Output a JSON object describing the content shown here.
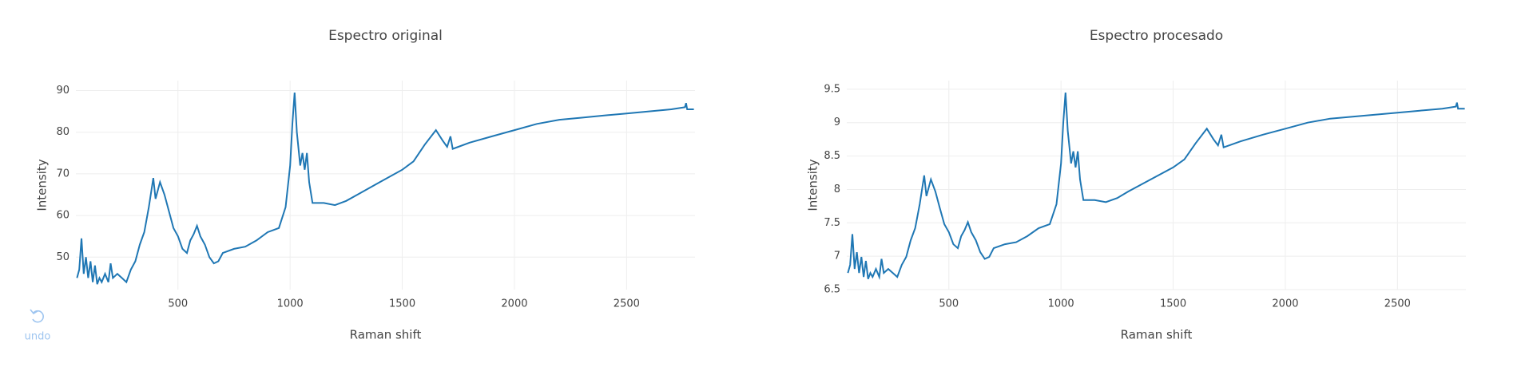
{
  "chart_data": [
    {
      "type": "line",
      "title": "Espectro original",
      "x_label": "Raman shift",
      "y_label": "Intensity",
      "x": [
        50,
        60,
        70,
        80,
        90,
        100,
        110,
        120,
        130,
        140,
        150,
        160,
        175,
        190,
        200,
        210,
        230,
        250,
        270,
        290,
        310,
        330,
        350,
        370,
        390,
        400,
        420,
        440,
        460,
        480,
        500,
        520,
        540,
        555,
        570,
        585,
        600,
        620,
        640,
        660,
        680,
        700,
        750,
        800,
        850,
        900,
        950,
        980,
        1000,
        1010,
        1020,
        1030,
        1045,
        1055,
        1065,
        1075,
        1085,
        1100,
        1150,
        1200,
        1250,
        1300,
        1400,
        1500,
        1550,
        1600,
        1650,
        1680,
        1700,
        1715,
        1725,
        1750,
        1800,
        1900,
        2000,
        2100,
        2200,
        2300,
        2400,
        2500,
        2600,
        2700,
        2760,
        2765,
        2770,
        2800
      ],
      "series": [
        {
          "color": "#1f77b4",
          "values": [
            45,
            47,
            54.5,
            46,
            50,
            45,
            49,
            44,
            48,
            43.5,
            45,
            44,
            46,
            44,
            48.5,
            45,
            46,
            45,
            44,
            47,
            49,
            53,
            56,
            62,
            69,
            64,
            68,
            65,
            61,
            57,
            55,
            52,
            51,
            54,
            55.5,
            57.5,
            55,
            53,
            50,
            48.5,
            49,
            51,
            52,
            52.5,
            54,
            56,
            57,
            62,
            72,
            82,
            89.5,
            80,
            72,
            75,
            71,
            75,
            68,
            63,
            63,
            62.5,
            63.5,
            65,
            68,
            71,
            73,
            77,
            80.5,
            78,
            76.5,
            79,
            76,
            76.5,
            77.5,
            79,
            80.5,
            82,
            83,
            83.5,
            84,
            84.5,
            85,
            85.5,
            86,
            87,
            85.5,
            85.5
          ]
        }
      ],
      "xlim": [
        45,
        2805
      ],
      "ylim": [
        42.2,
        92.4
      ],
      "xticks": [
        500,
        1000,
        1500,
        2000,
        2500
      ],
      "yticks": [
        50,
        60,
        70,
        80,
        90
      ],
      "grid": true
    },
    {
      "type": "line",
      "title": "Espectro procesado",
      "x_label": "Raman shift",
      "y_label": "Intensity",
      "x": [
        50,
        60,
        70,
        80,
        90,
        100,
        110,
        120,
        130,
        140,
        150,
        160,
        175,
        190,
        200,
        210,
        230,
        250,
        270,
        290,
        310,
        330,
        350,
        370,
        390,
        400,
        420,
        440,
        460,
        480,
        500,
        520,
        540,
        555,
        570,
        585,
        600,
        620,
        640,
        660,
        680,
        700,
        750,
        800,
        850,
        900,
        950,
        980,
        1000,
        1010,
        1020,
        1030,
        1045,
        1055,
        1065,
        1075,
        1085,
        1100,
        1150,
        1200,
        1250,
        1300,
        1400,
        1500,
        1550,
        1600,
        1650,
        1680,
        1700,
        1715,
        1725,
        1750,
        1800,
        1900,
        2000,
        2100,
        2200,
        2300,
        2400,
        2500,
        2600,
        2700,
        2760,
        2765,
        2770,
        2800
      ],
      "series": [
        {
          "color": "#1f77b4",
          "values": [
            6.75,
            6.87,
            7.33,
            6.81,
            7.06,
            6.75,
            6.99,
            6.69,
            6.93,
            6.66,
            6.75,
            6.69,
            6.81,
            6.69,
            6.96,
            6.75,
            6.81,
            6.75,
            6.69,
            6.87,
            6.99,
            7.24,
            7.42,
            7.78,
            8.21,
            7.9,
            8.15,
            7.97,
            7.72,
            7.48,
            7.36,
            7.18,
            7.12,
            7.3,
            7.39,
            7.51,
            7.36,
            7.24,
            7.06,
            6.96,
            6.99,
            7.12,
            7.18,
            7.21,
            7.3,
            7.42,
            7.48,
            7.78,
            8.39,
            9.0,
            9.45,
            8.88,
            8.39,
            8.57,
            8.33,
            8.57,
            8.15,
            7.84,
            7.84,
            7.81,
            7.87,
            7.97,
            8.15,
            8.33,
            8.45,
            8.69,
            8.91,
            8.75,
            8.66,
            8.82,
            8.63,
            8.66,
            8.72,
            8.82,
            8.91,
            9.0,
            9.06,
            9.09,
            9.12,
            9.15,
            9.18,
            9.21,
            9.24,
            9.3,
            9.21,
            9.21
          ]
        }
      ],
      "xlim": [
        45,
        2805
      ],
      "ylim": [
        6.5,
        9.63
      ],
      "xticks": [
        500,
        1000,
        1500,
        2000,
        2500
      ],
      "yticks": [
        6.5,
        7,
        7.5,
        8,
        8.5,
        9,
        9.5
      ],
      "grid": true
    }
  ],
  "undo_label": "undo"
}
